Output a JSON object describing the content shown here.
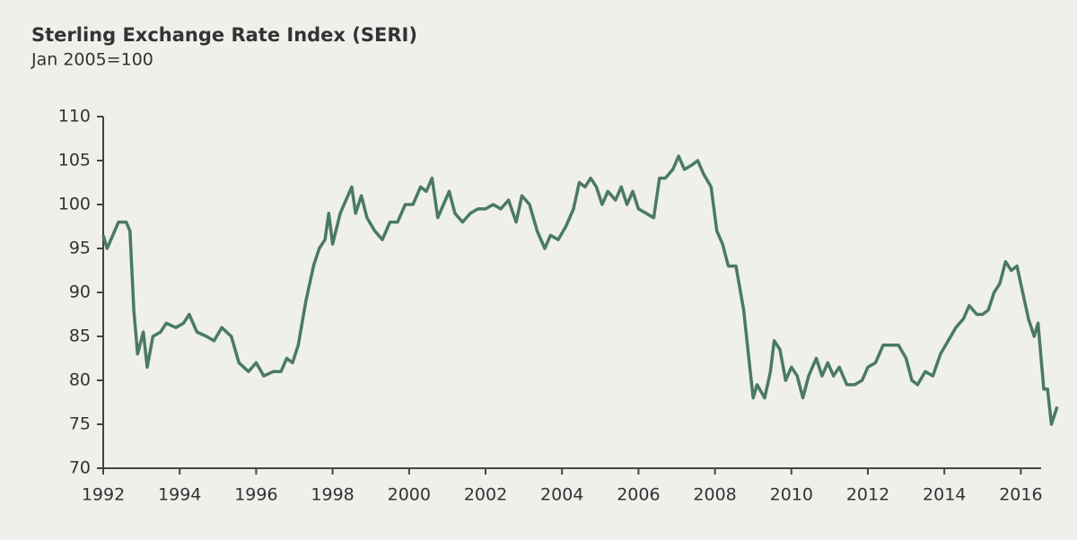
{
  "chart_data": {
    "type": "line",
    "title": "Sterling Exchange Rate Index (SERI)",
    "subtitle": "Jan 2005=100",
    "color": "#4a7a62",
    "xlim": [
      1992,
      2017
    ],
    "xticks": [
      1992,
      1994,
      1996,
      1998,
      2000,
      2002,
      2004,
      2006,
      2008,
      2010,
      2012,
      2014,
      2016
    ],
    "ylim": [
      70,
      110
    ],
    "yticks": [
      70,
      75,
      80,
      85,
      90,
      95,
      100,
      105,
      110
    ],
    "x": [
      1992.0,
      1992.1,
      1992.25,
      1992.4,
      1992.6,
      1992.7,
      1992.8,
      1992.9,
      1993.05,
      1993.15,
      1993.3,
      1993.5,
      1993.65,
      1993.9,
      1994.1,
      1994.25,
      1994.45,
      1994.7,
      1994.9,
      1995.1,
      1995.35,
      1995.55,
      1995.8,
      1996.0,
      1996.2,
      1996.45,
      1996.65,
      1996.8,
      1996.95,
      1997.1,
      1997.3,
      1997.5,
      1997.65,
      1997.8,
      1997.9,
      1998.0,
      1998.2,
      1998.35,
      1998.5,
      1998.6,
      1998.75,
      1998.9,
      1999.1,
      1999.3,
      1999.5,
      1999.7,
      1999.9,
      2000.1,
      2000.3,
      2000.45,
      2000.6,
      2000.75,
      2000.9,
      2001.05,
      2001.2,
      2001.4,
      2001.6,
      2001.8,
      2002.0,
      2002.2,
      2002.4,
      2002.6,
      2002.8,
      2002.95,
      2003.15,
      2003.35,
      2003.55,
      2003.7,
      2003.9,
      2004.1,
      2004.3,
      2004.45,
      2004.6,
      2004.75,
      2004.9,
      2005.05,
      2005.2,
      2005.4,
      2005.55,
      2005.7,
      2005.85,
      2006.0,
      2006.2,
      2006.4,
      2006.55,
      2006.7,
      2006.9,
      2007.05,
      2007.2,
      2007.4,
      2007.55,
      2007.7,
      2007.9,
      2008.05,
      2008.2,
      2008.35,
      2008.55,
      2008.75,
      2008.9,
      2009.0,
      2009.1,
      2009.3,
      2009.45,
      2009.55,
      2009.7,
      2009.85,
      2010.0,
      2010.15,
      2010.3,
      2010.45,
      2010.65,
      2010.8,
      2010.95,
      2011.1,
      2011.25,
      2011.45,
      2011.65,
      2011.85,
      2012.0,
      2012.2,
      2012.4,
      2012.6,
      2012.8,
      2013.0,
      2013.15,
      2013.3,
      2013.5,
      2013.7,
      2013.9,
      2014.1,
      2014.3,
      2014.5,
      2014.65,
      2014.85,
      2015.0,
      2015.15,
      2015.3,
      2015.45,
      2015.6,
      2015.75,
      2015.9,
      2016.05,
      2016.2,
      2016.35,
      2016.45,
      2016.6,
      2016.7,
      2016.8,
      2016.95
    ],
    "values": [
      96.5,
      95,
      96.5,
      98,
      98,
      97,
      88,
      83,
      85.5,
      81.5,
      85,
      85.5,
      86.5,
      86,
      86.5,
      87.5,
      85.5,
      85,
      84.5,
      86,
      85,
      82,
      81,
      82,
      80.5,
      81,
      81,
      82.5,
      82,
      84,
      89,
      93,
      95,
      96,
      99,
      95.5,
      99,
      100.5,
      102,
      99,
      101,
      98.5,
      97,
      96,
      98,
      98,
      100,
      100,
      102,
      101.5,
      103,
      98.5,
      100,
      101.5,
      99,
      98,
      99,
      99.5,
      99.5,
      100,
      99.5,
      100.5,
      98,
      101,
      100,
      97,
      95,
      96.5,
      96,
      97.5,
      99.5,
      102.5,
      102,
      103,
      102,
      100,
      101.5,
      100.5,
      102,
      100,
      101.5,
      99.5,
      99,
      98.5,
      103,
      103,
      104,
      105.5,
      104,
      104.5,
      105,
      103.5,
      102,
      97,
      95.5,
      93,
      93,
      88,
      82,
      78,
      79.5,
      78,
      81,
      84.5,
      83.5,
      80,
      81.5,
      80.5,
      78,
      80.5,
      82.5,
      80.5,
      82,
      80.5,
      81.5,
      79.5,
      79.5,
      80,
      81.5,
      82,
      84,
      84,
      84,
      82.5,
      80,
      79.5,
      81,
      80.5,
      83,
      84.5,
      86,
      87,
      88.5,
      87.5,
      87.5,
      88,
      90,
      91,
      93.5,
      92.5,
      93,
      90,
      87,
      85,
      86.5,
      79,
      79,
      75,
      77
    ]
  }
}
